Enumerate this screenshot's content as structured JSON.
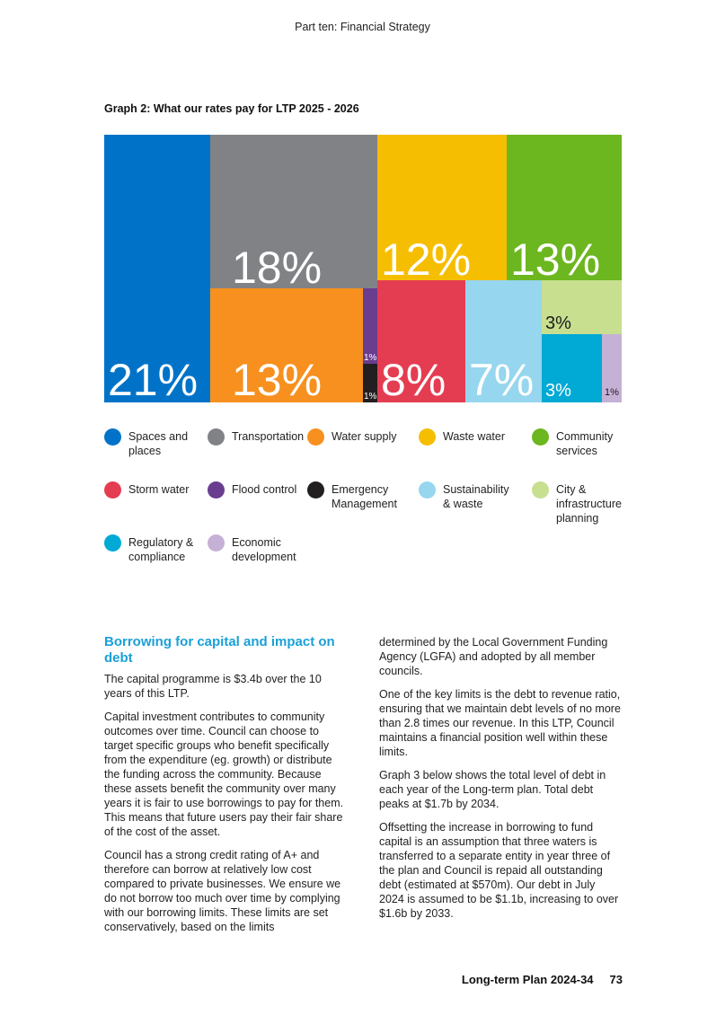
{
  "header": {
    "title": "Part ten: Financial Strategy"
  },
  "graph": {
    "title": "Graph 2: What our rates pay for LTP 2025 - 2026"
  },
  "chart_data": {
    "type": "treemap",
    "title": "Graph 2: What our rates pay for LTP 2025 - 2026",
    "items": [
      {
        "name": "Spaces and places",
        "value": 21,
        "label": "21%",
        "color": "#0073c8"
      },
      {
        "name": "Transportation",
        "value": 18,
        "label": "18%",
        "color": "#808285"
      },
      {
        "name": "Water supply",
        "value": 13,
        "label": "13%",
        "color": "#f7901e"
      },
      {
        "name": "Flood control",
        "value": 1,
        "label": "1%",
        "color": "#6a3d8f"
      },
      {
        "name": "Emergency Management",
        "value": 1,
        "label": "1%",
        "color": "#231f20"
      },
      {
        "name": "Waste water",
        "value": 12,
        "label": "12%",
        "color": "#f6be00"
      },
      {
        "name": "Community services",
        "value": 13,
        "label": "13%",
        "color": "#6cb61f"
      },
      {
        "name": "Storm water",
        "value": 8,
        "label": "8%",
        "color": "#e43d51"
      },
      {
        "name": "Sustainability & waste",
        "value": 7,
        "label": "7%",
        "color": "#96d6ee"
      },
      {
        "name": "City & infrastructure planning",
        "value": 3,
        "label": "3%",
        "color": "#c7df8f"
      },
      {
        "name": "Regulatory & compliance",
        "value": 3,
        "label": "3%",
        "color": "#00aad4"
      },
      {
        "name": "Economic development",
        "value": 1,
        "label": "1%",
        "color": "#c6b1d6"
      }
    ]
  },
  "legend": [
    {
      "label": "Spaces and places",
      "color": "#0073c8"
    },
    {
      "label": "Transportation",
      "color": "#808285"
    },
    {
      "label": "Water supply",
      "color": "#f7901e"
    },
    {
      "label": "Waste water",
      "color": "#f6be00"
    },
    {
      "label": "Community services",
      "color": "#6cb61f"
    },
    {
      "label": "Storm water",
      "color": "#e43d51"
    },
    {
      "label": "Flood control",
      "color": "#6a3d8f"
    },
    {
      "label": "Emergency Management",
      "color": "#231f20"
    },
    {
      "label": "Sustainability & waste",
      "color": "#96d6ee"
    },
    {
      "label": "City & infrastructure planning",
      "color": "#c7df8f"
    },
    {
      "label": "Regulatory & compliance",
      "color": "#00aad4"
    },
    {
      "label": "Economic development",
      "color": "#c6b1d6"
    }
  ],
  "body": {
    "heading": "Borrowing for capital and impact on debt",
    "left": [
      "The capital programme is $3.4b over the 10 years of this LTP.",
      "Capital investment contributes to community outcomes over time. Council can choose to target specific groups who benefit specifically from the expenditure (eg. growth) or distribute the funding across the community. Because these assets benefit the community over many years it is fair to use borrowings to pay for them. This means that future users pay their fair share of the cost of the asset.",
      "Council has a strong credit rating of A+ and therefore can borrow at relatively low cost compared to private businesses. We ensure we do not borrow too much over time by complying with our borrowing limits. These limits are set conservatively, based on the limits"
    ],
    "right": [
      "determined by the Local Government Funding Agency (LGFA) and adopted by all member councils.",
      "One of the key limits is the debt to revenue ratio, ensuring that we maintain debt levels of no more than 2.8 times our revenue. In this LTP, Council maintains a financial position well within these limits.",
      "Graph 3 below shows the total level of debt in each year of the Long-term plan. Total debt peaks at $1.7b by 2034.",
      "Offsetting the increase in borrowing to fund capital is an assumption that three waters is transferred to a separate entity in year three of the plan and Council is repaid all outstanding debt (estimated at $570m). Our debt in July 2024 is assumed to be $1.1b, increasing to over $1.6b by 2033."
    ]
  },
  "footer": {
    "doc": "Long-term Plan 2024-34",
    "page": "73"
  }
}
